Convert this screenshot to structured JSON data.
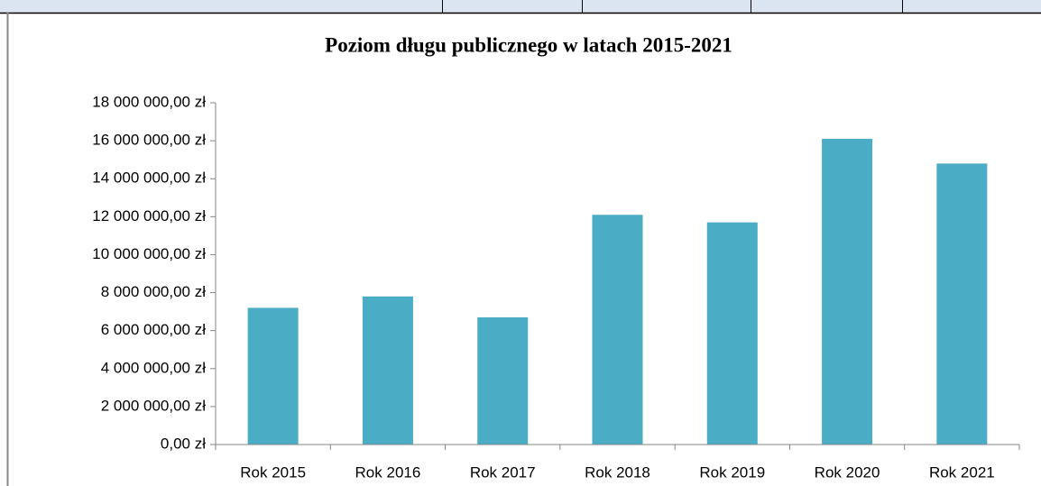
{
  "chart_data": {
    "type": "bar",
    "title": "Poziom długu publicznego w latach 2015-2021",
    "categories": [
      "Rok 2015",
      "Rok 2016",
      "Rok 2017",
      "Rok 2018",
      "Rok 2019",
      "Rok 2020",
      "Rok 2021"
    ],
    "values": [
      7200000,
      7800000,
      6700000,
      12100000,
      11700000,
      16100000,
      14800000
    ],
    "color": "#4bacc6",
    "ylim": [
      0,
      18000000
    ],
    "yticks": [
      {
        "value": 0,
        "label": "0,00 zł"
      },
      {
        "value": 2000000,
        "label": "2 000 000,00 zł"
      },
      {
        "value": 4000000,
        "label": "4 000 000,00 zł"
      },
      {
        "value": 6000000,
        "label": "6 000 000,00 zł"
      },
      {
        "value": 8000000,
        "label": "8 000 000,00 zł"
      },
      {
        "value": 10000000,
        "label": "10 000 000,00 zł"
      },
      {
        "value": 12000000,
        "label": "12 000 000,00 zł"
      },
      {
        "value": 14000000,
        "label": "14 000 000,00 zł"
      },
      {
        "value": 16000000,
        "label": "16 000 000,00 zł"
      },
      {
        "value": 18000000,
        "label": "18 000 000,00 zł"
      }
    ],
    "grid": false
  }
}
